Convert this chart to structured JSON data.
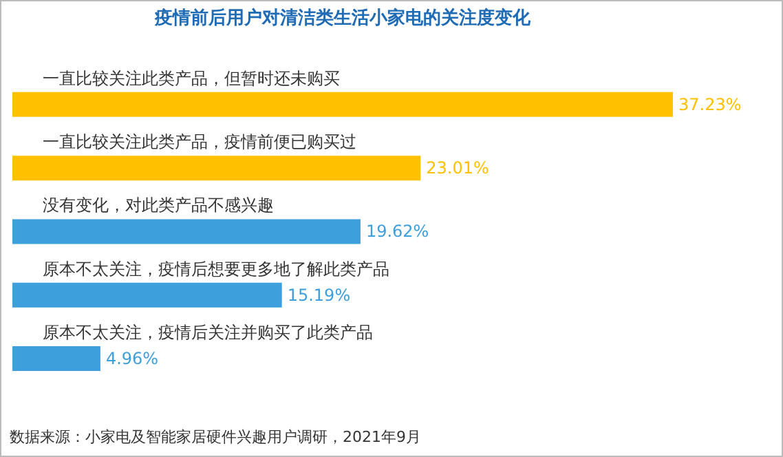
{
  "chart_data": {
    "type": "bar",
    "orientation": "horizontal",
    "title": "疫情前后用户对清洁类生活小家电的关注度变化",
    "categories": [
      "一直比较关注此类产品，但暂时还未购买",
      "一直比较关注此类产品，疫情前便已购买过",
      "没有变化，对此类产品不感兴趣",
      "原本不太关注，疫情后想要更多地了解此类产品",
      "原本不太关注，疫情后关注并购买了此类产品"
    ],
    "values": [
      37.23,
      23.01,
      19.62,
      15.19,
      4.96
    ],
    "colors": [
      "#ffc000",
      "#ffc000",
      "#3d9fdc",
      "#3d9fdc",
      "#3d9fdc"
    ],
    "value_labels": [
      "37.23%",
      "23.01%",
      "19.62%",
      "15.19%",
      "4.96%"
    ],
    "annotations": [
      "数据来源：小家电及智能家居硬件兴趣用户调研，2021年9月"
    ]
  }
}
